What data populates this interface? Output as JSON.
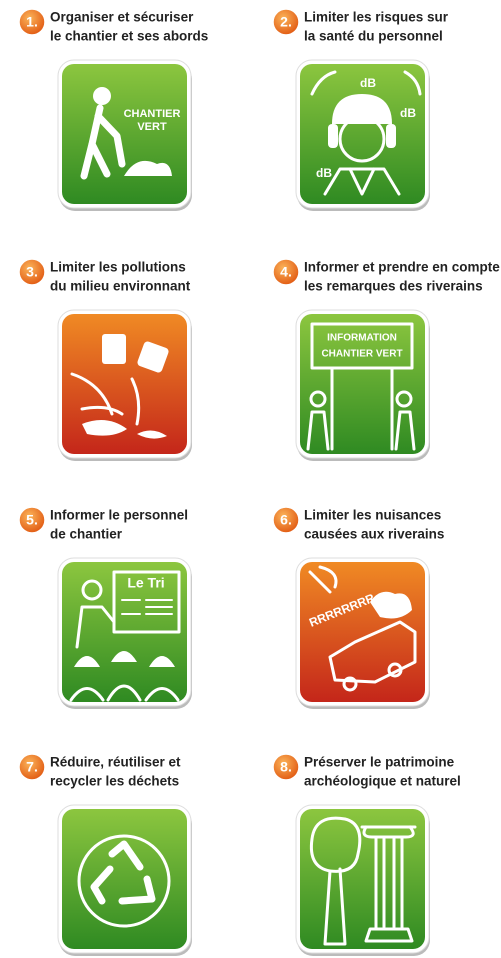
{
  "items": [
    {
      "number": "1.",
      "title": [
        "Organiser et sécuriser",
        "le chantier et ses abords"
      ],
      "icon_text": [
        "CHANTIER",
        "VERT"
      ]
    },
    {
      "number": "2.",
      "title": [
        "Limiter les risques sur",
        "la santé du personnel"
      ],
      "icon_text": [
        "dB",
        "dB",
        "dB"
      ]
    },
    {
      "number": "3.",
      "title": [
        "Limiter les pollutions",
        "du milieu environnant"
      ],
      "icon_text": []
    },
    {
      "number": "4.",
      "title": [
        "Informer et prendre en compte",
        "les remarques des riverains"
      ],
      "icon_text": [
        "INFORMATION",
        "CHANTIER VERT"
      ]
    },
    {
      "number": "5.",
      "title": [
        "Informer le personnel",
        "de chantier"
      ],
      "icon_text": [
        "Le Tri"
      ]
    },
    {
      "number": "6.",
      "title": [
        "Limiter les nuisances",
        "causées aux riverains"
      ],
      "icon_text": [
        "RRRRRRRR"
      ]
    },
    {
      "number": "7.",
      "title": [
        "Réduire, réutiliser et",
        "recycler les déchets"
      ],
      "icon_text": []
    },
    {
      "number": "8.",
      "title": [
        "Préserver le patrimoine",
        "archéologique et naturel"
      ],
      "icon_text": []
    }
  ]
}
